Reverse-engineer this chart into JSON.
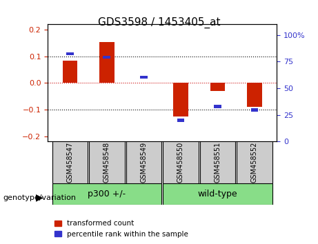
{
  "title": "GDS3598 / 1453405_at",
  "categories": [
    "GSM458547",
    "GSM458548",
    "GSM458549",
    "GSM458550",
    "GSM458551",
    "GSM458552"
  ],
  "red_values": [
    0.085,
    0.155,
    0.0,
    -0.125,
    -0.03,
    -0.09
  ],
  "blue_values_pct": [
    75,
    72,
    55,
    18,
    30,
    27
  ],
  "groups": [
    {
      "label": "p300 +/-",
      "indices": [
        0,
        1,
        2
      ],
      "color": "#90EE90"
    },
    {
      "label": "wild-type",
      "indices": [
        3,
        4,
        5
      ],
      "color": "#90EE90"
    }
  ],
  "ylim_left": [
    -0.22,
    0.22
  ],
  "ylim_right": [
    0,
    110
  ],
  "left_ticks": [
    -0.2,
    -0.1,
    0.0,
    0.1,
    0.2
  ],
  "right_ticks": [
    0,
    25,
    50,
    75,
    100
  ],
  "right_tick_labels": [
    "0",
    "25",
    "50",
    "75",
    "100%"
  ],
  "bar_color_red": "#CC2200",
  "bar_color_blue": "#3333CC",
  "tick_bg_color": "#CCCCCC",
  "group_bg_color": "#88DD88",
  "zero_line_color": "#CC0000",
  "grid_color": "#000000",
  "bar_width": 0.4,
  "blue_bar_width": 0.2
}
